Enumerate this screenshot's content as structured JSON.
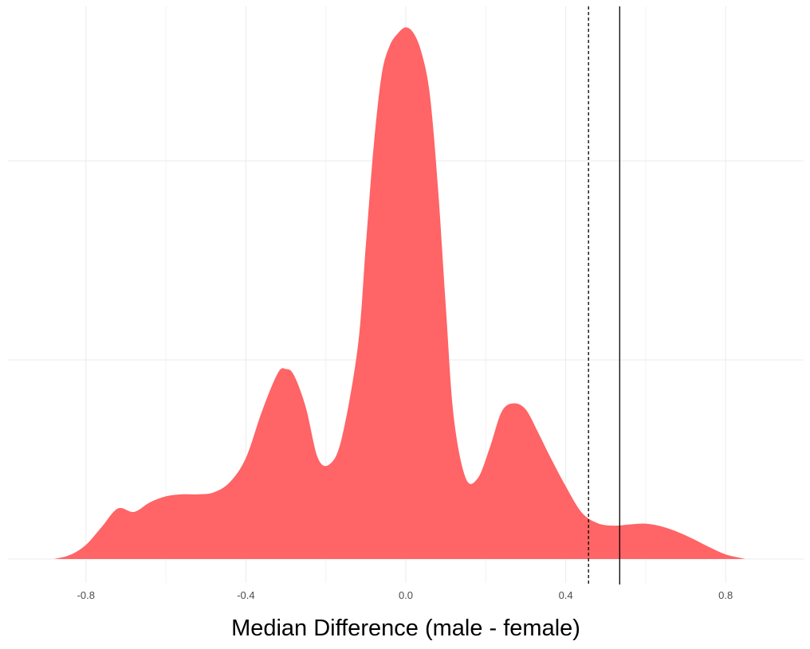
{
  "chart_data": {
    "type": "area",
    "title": "",
    "xlabel": "Median Difference (male - female)",
    "ylabel": "",
    "xlim": [
      -0.995,
      0.995
    ],
    "ylim": [
      0,
      2.6
    ],
    "x_ticks": [
      -0.8,
      -0.4,
      0.0,
      0.4,
      0.8
    ],
    "x_tick_labels": [
      "-0.8",
      "-0.4",
      "0.0",
      "0.4",
      "0.8"
    ],
    "x_minor_gridlines": [
      -0.6,
      -0.2,
      0.2,
      0.6
    ],
    "y_gridlines": [
      0,
      1,
      2
    ],
    "grid": true,
    "fill_color": "#ff6466",
    "series": [
      {
        "x": [
          -0.88,
          -0.84,
          -0.8,
          -0.76,
          -0.72,
          -0.68,
          -0.64,
          -0.6,
          -0.56,
          -0.52,
          -0.48,
          -0.44,
          -0.4,
          -0.36,
          -0.32,
          -0.3,
          -0.28,
          -0.25,
          -0.22,
          -0.19,
          -0.16,
          -0.12,
          -0.1,
          -0.08,
          -0.06,
          -0.04,
          -0.02,
          0.0,
          0.02,
          0.04,
          0.06,
          0.08,
          0.1,
          0.12,
          0.15,
          0.18,
          0.21,
          0.24,
          0.27,
          0.3,
          0.33,
          0.36,
          0.4,
          0.44,
          0.48,
          0.52,
          0.56,
          0.6,
          0.64,
          0.68,
          0.72,
          0.76,
          0.8,
          0.85
        ],
        "y": [
          0.0,
          0.02,
          0.07,
          0.16,
          0.25,
          0.233,
          0.28,
          0.31,
          0.32,
          0.32,
          0.33,
          0.38,
          0.5,
          0.73,
          0.92,
          0.94,
          0.91,
          0.75,
          0.5,
          0.47,
          0.6,
          1.05,
          1.55,
          2.05,
          2.4,
          2.54,
          2.6,
          2.63,
          2.6,
          2.5,
          2.3,
          1.85,
          1.25,
          0.7,
          0.4,
          0.4,
          0.55,
          0.73,
          0.77,
          0.74,
          0.63,
          0.51,
          0.36,
          0.23,
          0.177,
          0.165,
          0.171,
          0.175,
          0.161,
          0.134,
          0.098,
          0.058,
          0.023,
          0.0
        ]
      }
    ],
    "reference_lines": [
      {
        "x": 0.457,
        "style": "dashed"
      },
      {
        "x": 0.535,
        "style": "solid"
      }
    ]
  }
}
